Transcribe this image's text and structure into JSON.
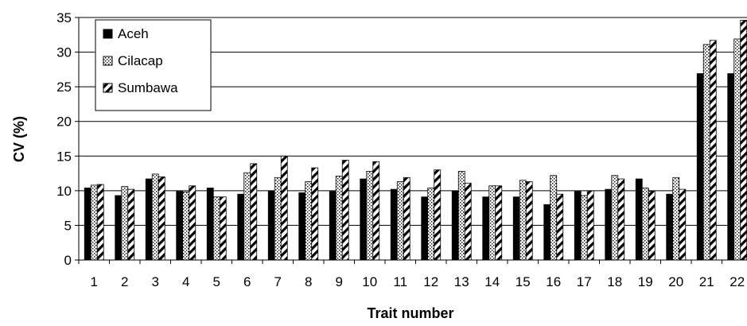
{
  "chart_data": {
    "type": "bar",
    "title": "",
    "xlabel": "Trait number",
    "ylabel": "CV (%)",
    "ylim": [
      0,
      35
    ],
    "yticks": [
      0,
      5,
      10,
      15,
      20,
      25,
      30,
      35
    ],
    "grid": "horizontal",
    "legend_position": "top-left",
    "categories": [
      "1",
      "2",
      "3",
      "4",
      "5",
      "6",
      "7",
      "8",
      "9",
      "10",
      "11",
      "12",
      "13",
      "14",
      "15",
      "16",
      "17",
      "18",
      "19",
      "20",
      "21",
      "22"
    ],
    "series": [
      {
        "name": "Aceh",
        "pattern": "solid-black",
        "values": [
          10.4,
          9.3,
          11.7,
          9.9,
          10.4,
          9.5,
          10.0,
          9.7,
          9.9,
          11.7,
          10.2,
          9.1,
          10.0,
          9.1,
          9.1,
          8.0,
          9.9,
          10.2,
          11.7,
          9.5,
          26.9,
          26.9
        ]
      },
      {
        "name": "Cilacap",
        "pattern": "dotted",
        "values": [
          10.8,
          10.6,
          12.4,
          9.8,
          9.1,
          12.6,
          11.9,
          11.3,
          12.1,
          12.8,
          11.3,
          10.4,
          12.8,
          10.7,
          11.5,
          12.2,
          9.3,
          12.2,
          10.4,
          11.9,
          31.1,
          31.9
        ]
      },
      {
        "name": "Sumbawa",
        "pattern": "diagonal-hatch",
        "values": [
          10.9,
          10.2,
          12.0,
          10.7,
          9.1,
          13.9,
          15.0,
          13.3,
          14.4,
          14.2,
          11.9,
          13.0,
          11.1,
          10.7,
          11.3,
          9.5,
          10.0,
          11.7,
          9.9,
          10.2,
          31.7,
          34.6
        ]
      }
    ]
  }
}
